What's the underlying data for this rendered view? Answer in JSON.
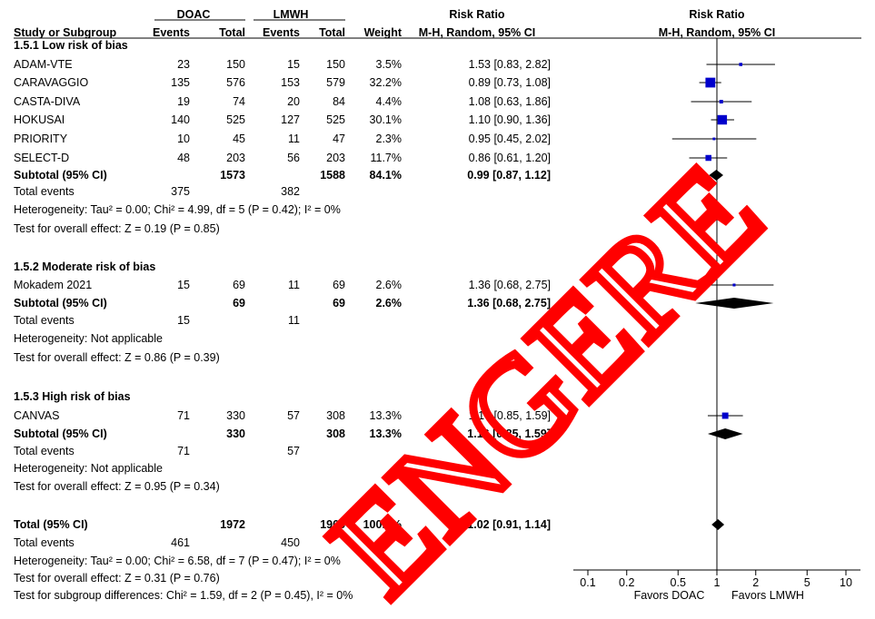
{
  "header": {
    "group1": "DOAC",
    "group2": "LMWH",
    "rr_title": "Risk Ratio",
    "plot_title": "Risk Ratio",
    "col_study": "Study or Subgroup",
    "col_events1": "Events",
    "col_total1": "Total",
    "col_events2": "Events",
    "col_total2": "Total",
    "col_weight": "Weight",
    "col_method": "M-H, Random, 95% CI",
    "plot_method": "M-H, Random, 95% CI"
  },
  "rows": [
    {
      "kind": "heading",
      "label": "1.5.1 Low risk of bias"
    },
    {
      "kind": "study",
      "label": "ADAM-VTE",
      "e1": "23",
      "t1": "150",
      "e2": "15",
      "t2": "150",
      "w": "3.5%",
      "ci": "1.53 [0.83, 2.82]"
    },
    {
      "kind": "study",
      "label": "CARAVAGGIO",
      "e1": "135",
      "t1": "576",
      "e2": "153",
      "t2": "579",
      "w": "32.2%",
      "ci": "0.89 [0.73, 1.08]"
    },
    {
      "kind": "study",
      "label": "CASTA-DIVA",
      "e1": "19",
      "t1": "74",
      "e2": "20",
      "t2": "84",
      "w": "4.4%",
      "ci": "1.08 [0.63, 1.86]"
    },
    {
      "kind": "study",
      "label": "HOKUSAI",
      "e1": "140",
      "t1": "525",
      "e2": "127",
      "t2": "525",
      "w": "30.1%",
      "ci": "1.10 [0.90, 1.36]"
    },
    {
      "kind": "study",
      "label": "PRIORITY",
      "e1": "10",
      "t1": "45",
      "e2": "11",
      "t2": "47",
      "w": "2.3%",
      "ci": "0.95 [0.45, 2.02]"
    },
    {
      "kind": "study",
      "label": "SELECT-D",
      "e1": "48",
      "t1": "203",
      "e2": "56",
      "t2": "203",
      "w": "11.7%",
      "ci": "0.86 [0.61, 1.20]"
    },
    {
      "kind": "subtotal",
      "label": "Subtotal (95% CI)",
      "t1": "1573",
      "t2": "1588",
      "w": "84.1%",
      "ci": "0.99 [0.87, 1.12]"
    },
    {
      "kind": "text",
      "label": "Total events",
      "e1": "375",
      "e2": "382"
    },
    {
      "kind": "text",
      "label": "Heterogeneity: Tau² = 0.00; Chi² = 4.99, df = 5 (P = 0.42); I² = 0%"
    },
    {
      "kind": "text",
      "label": "Test for overall effect: Z = 0.19 (P = 0.85)"
    },
    {
      "kind": "heading",
      "label": "1.5.2 Moderate risk of bias"
    },
    {
      "kind": "study",
      "label": "Mokadem 2021",
      "e1": "15",
      "t1": "69",
      "e2": "11",
      "t2": "69",
      "w": "2.6%",
      "ci": "1.36 [0.68, 2.75]"
    },
    {
      "kind": "subtotal",
      "label": "Subtotal (95% CI)",
      "t1": "69",
      "t2": "69",
      "w": "2.6%",
      "ci": "1.36 [0.68, 2.75]"
    },
    {
      "kind": "text",
      "label": "Total events",
      "e1": "15",
      "e2": "11"
    },
    {
      "kind": "text",
      "label": "Heterogeneity: Not applicable"
    },
    {
      "kind": "text",
      "label": "Test for overall effect: Z = 0.86 (P = 0.39)"
    },
    {
      "kind": "heading",
      "label": "1.5.3 High risk of bias"
    },
    {
      "kind": "study",
      "label": "CANVAS",
      "e1": "71",
      "t1": "330",
      "e2": "57",
      "t2": "308",
      "w": "13.3%",
      "ci": "1.16 [0.85, 1.59]"
    },
    {
      "kind": "subtotal",
      "label": "Subtotal (95% CI)",
      "t1": "330",
      "t2": "308",
      "w": "13.3%",
      "ci": "1.16 [0.85, 1.59]"
    },
    {
      "kind": "text",
      "label": "Total events",
      "e1": "71",
      "e2": "57"
    },
    {
      "kind": "text",
      "label": "Heterogeneity: Not applicable"
    },
    {
      "kind": "text",
      "label": "Test for overall effect: Z = 0.95 (P = 0.34)"
    },
    {
      "kind": "total",
      "label": "Total (95% CI)",
      "t1": "1972",
      "t2": "1965",
      "w": "100.0%",
      "ci": "1.02 [0.91, 1.14]"
    },
    {
      "kind": "text",
      "label": "Total events",
      "e1": "461",
      "e2": "450"
    },
    {
      "kind": "text",
      "label": "Heterogeneity: Tau² = 0.00; Chi² = 6.58, df = 7 (P = 0.47); I² = 0%"
    },
    {
      "kind": "text",
      "label": "Test for overall effect: Z = 0.31 (P = 0.76)"
    },
    {
      "kind": "text",
      "label": "Test for subgroup differences: Chi² = 1.59, df = 2 (P = 0.45), I² = 0%"
    }
  ],
  "chart_data": {
    "type": "forest",
    "scale": "log",
    "xticks": [
      0.1,
      0.2,
      0.5,
      1,
      2,
      5,
      10
    ],
    "xtick_labels": [
      "0.1",
      "0.2",
      "0.5",
      "1",
      "2",
      "5",
      "10"
    ],
    "left_label": "Favors DOAC",
    "right_label": "Favors LMWH",
    "studies": [
      {
        "name": "ADAM-VTE",
        "rr": 1.53,
        "lo": 0.83,
        "hi": 2.82,
        "weight": 3.5
      },
      {
        "name": "CARAVAGGIO",
        "rr": 0.89,
        "lo": 0.73,
        "hi": 1.08,
        "weight": 32.2
      },
      {
        "name": "CASTA-DIVA",
        "rr": 1.08,
        "lo": 0.63,
        "hi": 1.86,
        "weight": 4.4
      },
      {
        "name": "HOKUSAI",
        "rr": 1.1,
        "lo": 0.9,
        "hi": 1.36,
        "weight": 30.1
      },
      {
        "name": "PRIORITY",
        "rr": 0.95,
        "lo": 0.45,
        "hi": 2.02,
        "weight": 2.3
      },
      {
        "name": "SELECT-D",
        "rr": 0.86,
        "lo": 0.61,
        "hi": 1.2,
        "weight": 11.7
      },
      {
        "name": "Mokadem 2021",
        "rr": 1.36,
        "lo": 0.68,
        "hi": 2.75,
        "weight": 2.6
      },
      {
        "name": "CANVAS",
        "rr": 1.16,
        "lo": 0.85,
        "hi": 1.59,
        "weight": 13.3
      }
    ],
    "diamonds": [
      {
        "name": "Subtotal 1.5.1",
        "rr": 0.99,
        "lo": 0.87,
        "hi": 1.12
      },
      {
        "name": "Subtotal 1.5.2",
        "rr": 1.36,
        "lo": 0.68,
        "hi": 2.75
      },
      {
        "name": "Subtotal 1.5.3",
        "rr": 1.16,
        "lo": 0.85,
        "hi": 1.59
      },
      {
        "name": "Total",
        "rr": 1.02,
        "lo": 0.91,
        "hi": 1.14
      }
    ],
    "colors": {
      "square": "#0000cc",
      "diamond": "#000000",
      "line": "#000000"
    }
  },
  "watermark": {
    "text": "ENGERE",
    "color": "#ff0000"
  }
}
